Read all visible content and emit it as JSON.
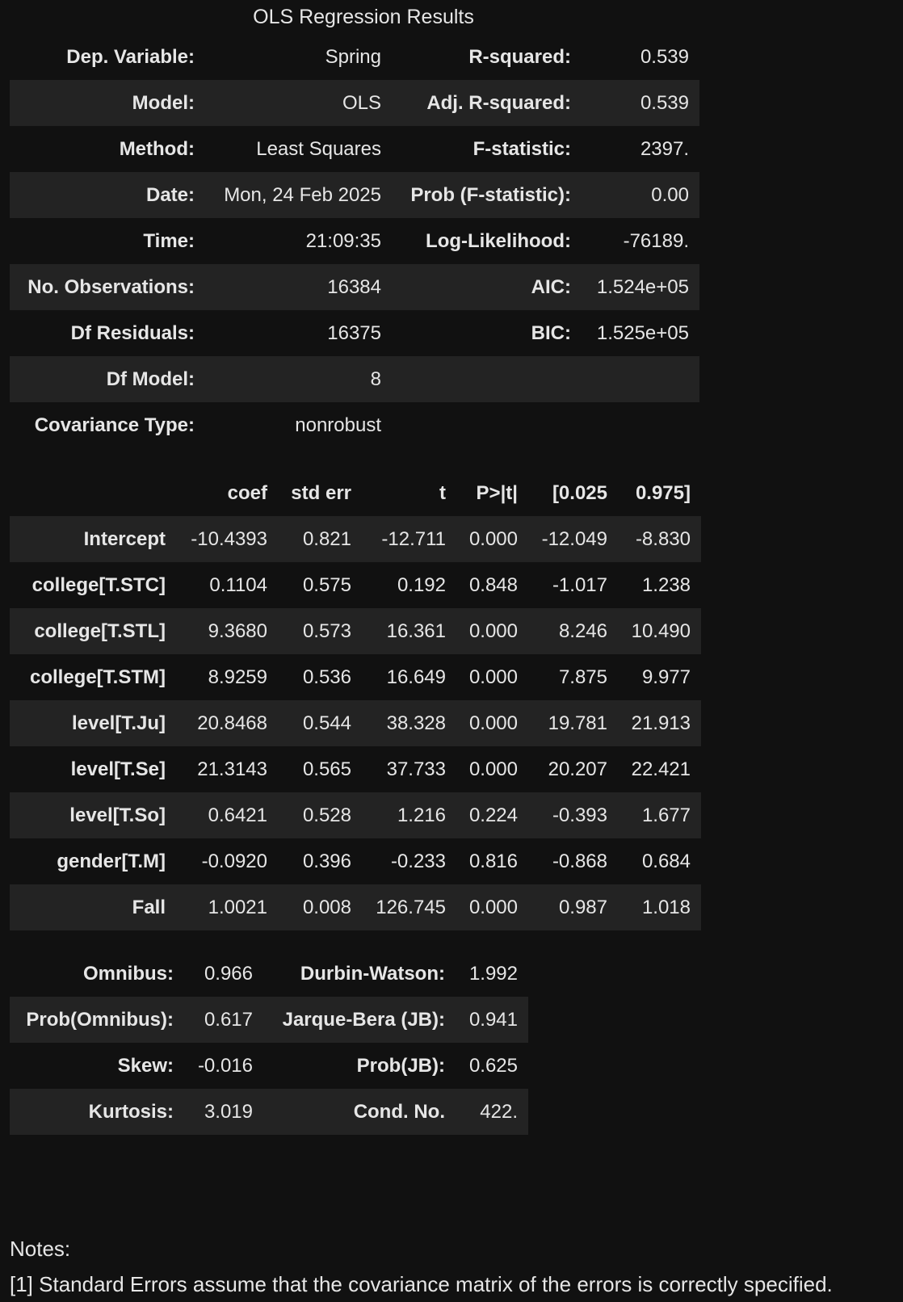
{
  "title": "OLS Regression Results",
  "summary": [
    [
      "Dep. Variable:",
      "Spring",
      "R-squared:",
      "0.539"
    ],
    [
      "Model:",
      "OLS",
      "Adj. R-squared:",
      "0.539"
    ],
    [
      "Method:",
      "Least Squares",
      "F-statistic:",
      "2397."
    ],
    [
      "Date:",
      "Mon, 24 Feb 2025",
      "Prob (F-statistic):",
      "0.00"
    ],
    [
      "Time:",
      "21:09:35",
      "Log-Likelihood:",
      "-76189."
    ],
    [
      "No. Observations:",
      "16384",
      "AIC:",
      "1.524e+05"
    ],
    [
      "Df Residuals:",
      "16375",
      "BIC:",
      "1.525e+05"
    ],
    [
      "Df Model:",
      "8",
      "",
      ""
    ],
    [
      "Covariance Type:",
      "nonrobust",
      "",
      ""
    ]
  ],
  "coef_table": {
    "headers": [
      "",
      "coef",
      "std err",
      "t",
      "P>|t|",
      "[0.025",
      "0.975]"
    ],
    "rows": [
      [
        "Intercept",
        "-10.4393",
        "0.821",
        "-12.711",
        "0.000",
        "-12.049",
        "-8.830"
      ],
      [
        "college[T.STC]",
        "0.1104",
        "0.575",
        "0.192",
        "0.848",
        "-1.017",
        "1.238"
      ],
      [
        "college[T.STL]",
        "9.3680",
        "0.573",
        "16.361",
        "0.000",
        "8.246",
        "10.490"
      ],
      [
        "college[T.STM]",
        "8.9259",
        "0.536",
        "16.649",
        "0.000",
        "7.875",
        "9.977"
      ],
      [
        "level[T.Ju]",
        "20.8468",
        "0.544",
        "38.328",
        "0.000",
        "19.781",
        "21.913"
      ],
      [
        "level[T.Se]",
        "21.3143",
        "0.565",
        "37.733",
        "0.000",
        "20.207",
        "22.421"
      ],
      [
        "level[T.So]",
        "0.6421",
        "0.528",
        "1.216",
        "0.224",
        "-0.393",
        "1.677"
      ],
      [
        "gender[T.M]",
        "-0.0920",
        "0.396",
        "-0.233",
        "0.816",
        "-0.868",
        "0.684"
      ],
      [
        "Fall",
        "1.0021",
        "0.008",
        "126.745",
        "0.000",
        "0.987",
        "1.018"
      ]
    ]
  },
  "diagnostics": [
    [
      "Omnibus:",
      "0.966",
      "Durbin-Watson:",
      "1.992"
    ],
    [
      "Prob(Omnibus):",
      "0.617",
      "Jarque-Bera (JB):",
      "0.941"
    ],
    [
      "Skew:",
      "-0.016",
      "Prob(JB):",
      "0.625"
    ],
    [
      "Kurtosis:",
      "3.019",
      "Cond. No.",
      "422."
    ]
  ],
  "notes": {
    "heading": "Notes:",
    "items": [
      "[1] Standard Errors assume that the covariance matrix of the errors is correctly specified."
    ]
  }
}
